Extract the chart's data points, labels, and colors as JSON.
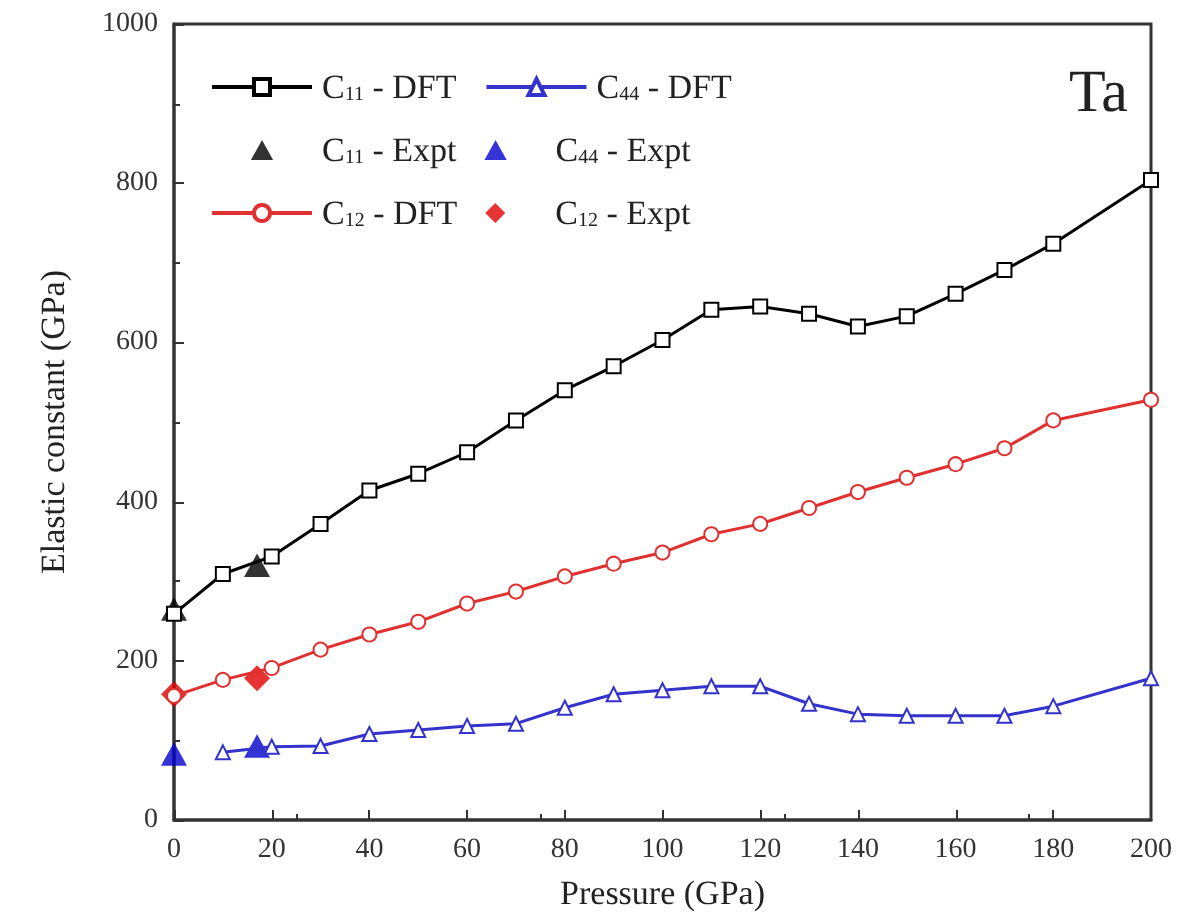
{
  "chart_data": {
    "type": "line",
    "xlabel": "Pressure (GPa)",
    "ylabel": "Elastic constant (GPa)",
    "annotations": [
      "Ta"
    ],
    "xlim": [
      0,
      200
    ],
    "xticks": [
      0,
      20,
      40,
      60,
      80,
      100,
      120,
      140,
      160,
      180,
      200
    ],
    "ylim": [
      0,
      1000
    ],
    "yticks": [
      0,
      200,
      400,
      600,
      800,
      1000
    ],
    "grid": false,
    "legend": "top left",
    "series": [
      {
        "name": "C$_{11}$ - DFT",
        "marker": "square",
        "color": "#000000",
        "x": [
          0,
          10,
          20,
          30,
          40,
          50,
          60,
          70,
          80,
          90,
          100,
          110,
          120,
          130,
          140,
          150,
          160,
          170,
          180,
          200
        ],
        "values": [
          259,
          309,
          331,
          372,
          414,
          435,
          462,
          502,
          540,
          570,
          603,
          641,
          645,
          636,
          620,
          633,
          661,
          691,
          724,
          804
        ]
      },
      {
        "name": "C$_{44}$ - DFT",
        "marker": "triangle",
        "color": "#3333cc",
        "x": [
          10,
          20,
          30,
          40,
          50,
          60,
          70,
          80,
          90,
          100,
          110,
          120,
          130,
          140,
          150,
          160,
          170,
          180,
          200
        ],
        "values": [
          85,
          92,
          93,
          108,
          113,
          118,
          121,
          141,
          158,
          163,
          168,
          168,
          146,
          133,
          131,
          131,
          131,
          143,
          178
        ]
      },
      {
        "name": "C$_{11}$ - Expt",
        "type": "scatter",
        "marker": "triangle",
        "color": "#000000",
        "x": [
          0,
          17
        ],
        "values": [
          265,
          320
        ]
      },
      {
        "name": "C$_{44}$ - Expt",
        "type": "scatter",
        "marker": "triangle",
        "color": "#0000cc",
        "x": [
          0,
          17
        ],
        "values": [
          83,
          93
        ]
      },
      {
        "name": "C$_{12}$ - DFT",
        "marker": "circle",
        "color": "#e03030",
        "x": [
          0,
          10,
          20,
          30,
          40,
          50,
          60,
          70,
          80,
          90,
          100,
          110,
          120,
          130,
          140,
          150,
          160,
          170,
          180,
          200
        ],
        "values": [
          156,
          176,
          191,
          214,
          233,
          249,
          272,
          287,
          306,
          322,
          336,
          359,
          372,
          392,
          412,
          430,
          447,
          467,
          502,
          528
        ]
      },
      {
        "name": "C$_{12}$ - Expt",
        "type": "scatter",
        "marker": "diamond",
        "color": "#e00000",
        "x": [
          0,
          17
        ],
        "values": [
          158,
          178
        ]
      }
    ]
  }
}
